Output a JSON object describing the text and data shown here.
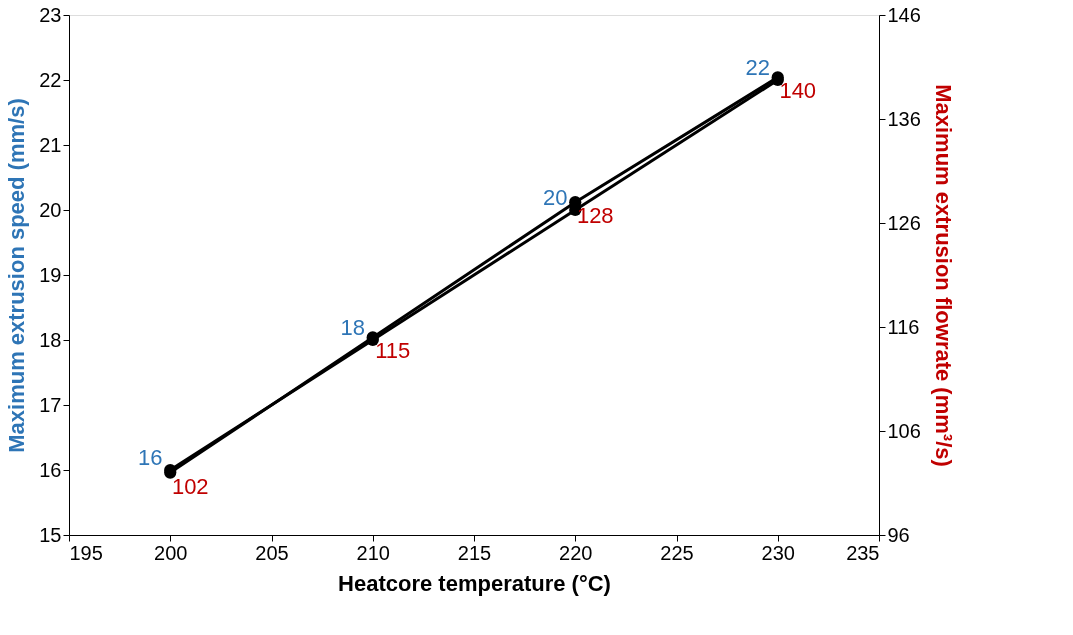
{
  "chart_data": {
    "type": "line",
    "xlabel": "Heatcore temperature (°C)",
    "ylabel": "Maximum extrusion speed (mm/s)",
    "y2label": "Maximum extrusion flowrate (mm³/s)",
    "x": [
      200,
      210,
      220,
      230
    ],
    "series": [
      {
        "color": "#000000",
        "values": [
          16,
          18,
          20,
          22
        ]
      },
      {
        "color": "#000000",
        "values": [
          102,
          115,
          128,
          140
        ],
        "axis": "y2"
      }
    ],
    "xlim": [
      195,
      235
    ],
    "xticks": [
      195,
      200,
      205,
      210,
      215,
      220,
      225,
      230,
      235
    ],
    "ylim": [
      15,
      23
    ],
    "yticks": [
      15,
      16,
      17,
      18,
      19,
      20,
      21,
      22,
      23
    ],
    "y2lim": [
      96,
      146
    ],
    "y2ticks": [
      96,
      106,
      116,
      126,
      136,
      146
    ],
    "grid": false,
    "marker": "circle",
    "line_style": "solid",
    "data_labels": true
  }
}
